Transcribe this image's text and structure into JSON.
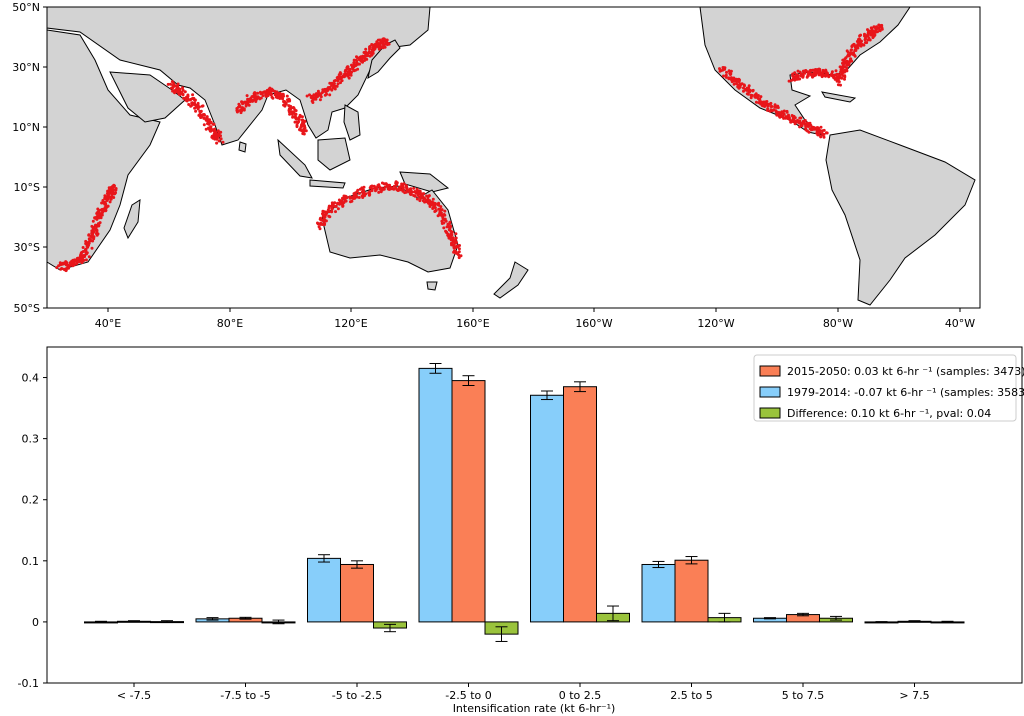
{
  "map": {
    "lat_labels": [
      "50°N",
      "30°N",
      "10°N",
      "10°S",
      "30°S",
      "50°S"
    ],
    "lon_labels": [
      "40°E",
      "80°E",
      "120°E",
      "160°E",
      "160°W",
      "120°W",
      "80°W",
      "40°W"
    ],
    "colors": {
      "land": "#d3d3d3",
      "coast": "#000000",
      "points": "#e8161b",
      "ocean": "#ffffff"
    }
  },
  "chart_data": {
    "type": "bar",
    "categories": [
      "< -7.5",
      "-7.5 to -5",
      "-5 to -2.5",
      "-2.5 to 0",
      "0 to 2.5",
      "2.5 to 5",
      "5 to 7.5",
      "> 7.5"
    ],
    "series": [
      {
        "name": "1979-2014: -0.07  kt 6-hr ⁻¹ (samples: 3583)",
        "color": "#87cefa",
        "values": [
          0.0,
          0.005,
          0.104,
          0.415,
          0.371,
          0.094,
          0.006,
          0.0
        ],
        "errors": [
          0.001,
          0.002,
          0.006,
          0.008,
          0.007,
          0.005,
          0.001,
          0.0005
        ]
      },
      {
        "name": "2015-2050: 0.03 kt 6-hr ⁻¹ (samples: 3473)",
        "color": "#fa7f56",
        "values": [
          0.001,
          0.006,
          0.094,
          0.395,
          0.385,
          0.101,
          0.012,
          0.001
        ],
        "errors": [
          0.001,
          0.0015,
          0.006,
          0.008,
          0.008,
          0.006,
          0.002,
          0.001
        ]
      },
      {
        "name": "Difference: 0.10 kt 6-hr ⁻¹, pval: 0.04",
        "color": "#9ac33c",
        "values": [
          0.0005,
          0.0,
          -0.01,
          -0.02,
          0.014,
          0.007,
          0.006,
          0.0
        ],
        "errors": [
          0.0015,
          0.003,
          0.006,
          0.012,
          0.012,
          0.007,
          0.003,
          0.001
        ]
      }
    ],
    "legend_order": [
      1,
      0,
      2
    ],
    "xlabel": "Intensification rate (kt 6-hr⁻¹)",
    "ylabel": "",
    "ylim": [
      -0.1,
      0.45
    ],
    "yticks": [
      "-0.1",
      "0",
      "0.1",
      "0.2",
      "0.3",
      "0.4"
    ],
    "ytick_values": [
      -0.1,
      0,
      0.1,
      0.2,
      0.3,
      0.4
    ],
    "legend": "top-right",
    "grid": false
  }
}
